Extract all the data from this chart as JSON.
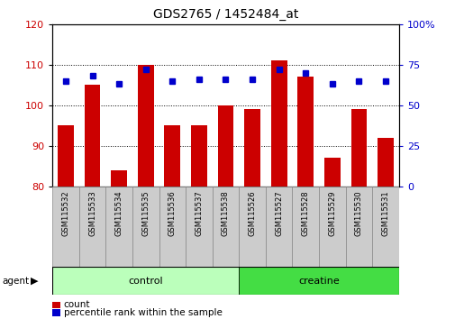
{
  "title": "GDS2765 / 1452484_at",
  "categories": [
    "GSM115532",
    "GSM115533",
    "GSM115534",
    "GSM115535",
    "GSM115536",
    "GSM115537",
    "GSM115538",
    "GSM115526",
    "GSM115527",
    "GSM115528",
    "GSM115529",
    "GSM115530",
    "GSM115531"
  ],
  "counts": [
    95,
    105,
    84,
    110,
    95,
    95,
    100,
    99,
    111,
    107,
    87,
    99,
    92
  ],
  "percentile_ranks": [
    65,
    68,
    63,
    72,
    65,
    66,
    66,
    66,
    72,
    70,
    63,
    65,
    65
  ],
  "bar_color": "#cc0000",
  "dot_color": "#0000cc",
  "ylim_left": [
    80,
    120
  ],
  "ylim_right": [
    0,
    100
  ],
  "yticks_left": [
    80,
    90,
    100,
    110,
    120
  ],
  "yticks_right": [
    0,
    25,
    50,
    75,
    100
  ],
  "group_info": [
    {
      "label": "control",
      "start": 0,
      "end": 6,
      "color": "#bbffbb"
    },
    {
      "label": "creatine",
      "start": 7,
      "end": 12,
      "color": "#44dd44"
    }
  ],
  "agent_label": "agent",
  "background_color": "#ffffff",
  "tick_label_color_left": "#cc0000",
  "tick_label_color_right": "#0000cc",
  "xtick_box_color": "#cccccc",
  "legend_count_color": "#cc0000",
  "legend_pct_color": "#0000cc",
  "legend_count_label": "count",
  "legend_pct_label": "percentile rank within the sample"
}
